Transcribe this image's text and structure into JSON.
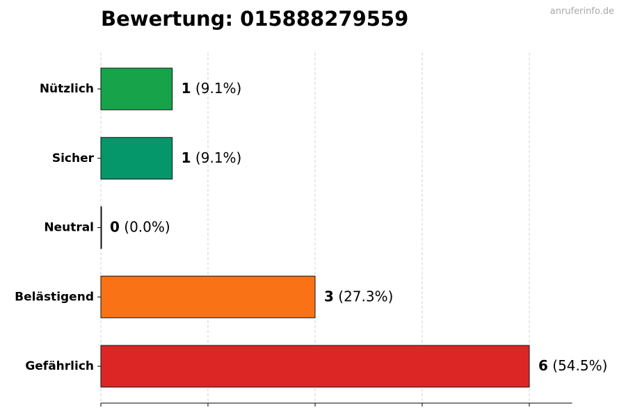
{
  "watermark": "anruferinfo.de",
  "colors": {
    "nuetzlich": "#16a34a",
    "sicher": "#059669",
    "neutral": "#9ca3af",
    "belaestigend": "#f97316",
    "gefaehrlich": "#dc2626",
    "grid": "#cccccc",
    "edge": "#111111"
  },
  "chart_data": {
    "type": "bar",
    "orientation": "horizontal",
    "title": "Bewertung: 015888279559",
    "categories": [
      "Nützlich",
      "Sicher",
      "Neutral",
      "Belästigend",
      "Gefährlich"
    ],
    "values": [
      1,
      1,
      0,
      3,
      6
    ],
    "percent_labels": [
      "(9.1%)",
      "(9.1%)",
      "(0.0%)",
      "(27.3%)",
      "(54.5%)"
    ],
    "xlim": [
      0,
      6.6
    ],
    "x_grid_ticks": [
      0,
      1.5,
      3,
      4.5,
      6
    ],
    "grid": "x-dashed",
    "xlabel": "",
    "ylabel": ""
  }
}
